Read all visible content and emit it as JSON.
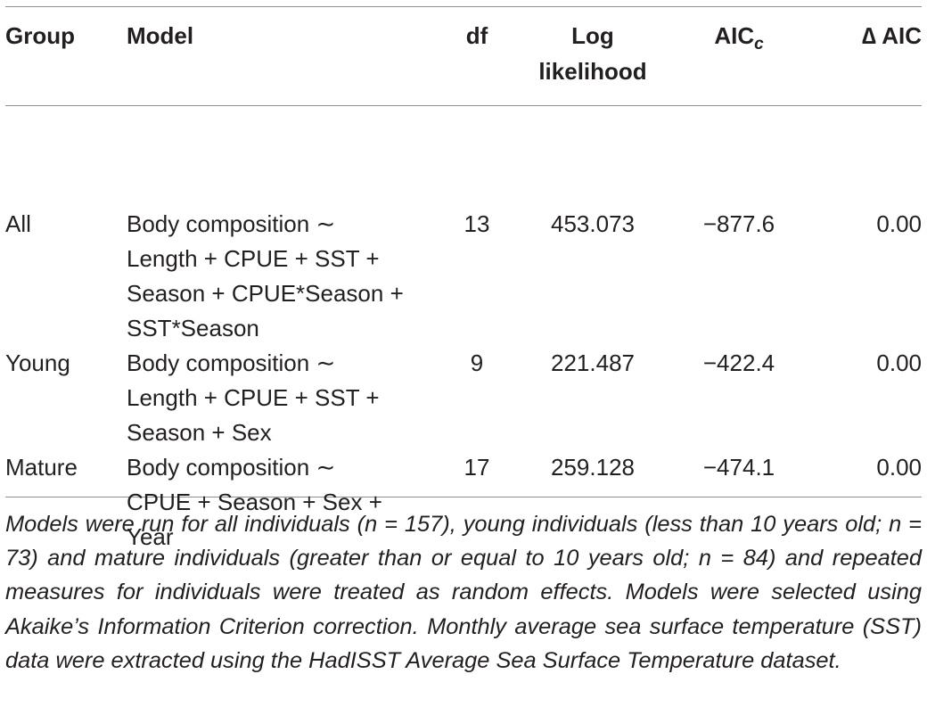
{
  "table": {
    "headers": {
      "group": "Group",
      "model": "Model",
      "df": "df",
      "loglik_line1": "Log",
      "loglik_line2": "likelihood",
      "aic_base": "AIC",
      "aic_sub": "c",
      "delta_aic": "∆ AIC"
    },
    "rows": [
      {
        "group": "All",
        "model_lines": [
          "Body composition ∼",
          "Length + CPUE + SST +",
          "Season + CPUE*Season +",
          "SST*Season"
        ],
        "df": "13",
        "loglik": "453.073",
        "aic": "−877.6",
        "delta_aic": "0.00"
      },
      {
        "group": "Young",
        "model_lines": [
          "Body composition ∼",
          "Length + CPUE + SST +",
          "Season + Sex"
        ],
        "df": "9",
        "loglik": "221.487",
        "aic": "−422.4",
        "delta_aic": "0.00"
      },
      {
        "group": "Mature",
        "model_lines": [
          "Body composition ∼",
          "CPUE + Season + Sex +",
          "Year"
        ],
        "df": "17",
        "loglik": "259.128",
        "aic": "−474.1",
        "delta_aic": "0.00"
      }
    ]
  },
  "footnote": "Models were run for all individuals (n = 157), young individuals (less than 10 years old; n = 73) and mature individuals (greater than or equal to 10 years old; n = 84) and repeated measures for individuals were treated as random effects. Models were selected using Akaike’s Information Criterion correction. Monthly average sea surface temperature (SST) data were extracted using the HadISST Average Sea Surface Temperature dataset."
}
